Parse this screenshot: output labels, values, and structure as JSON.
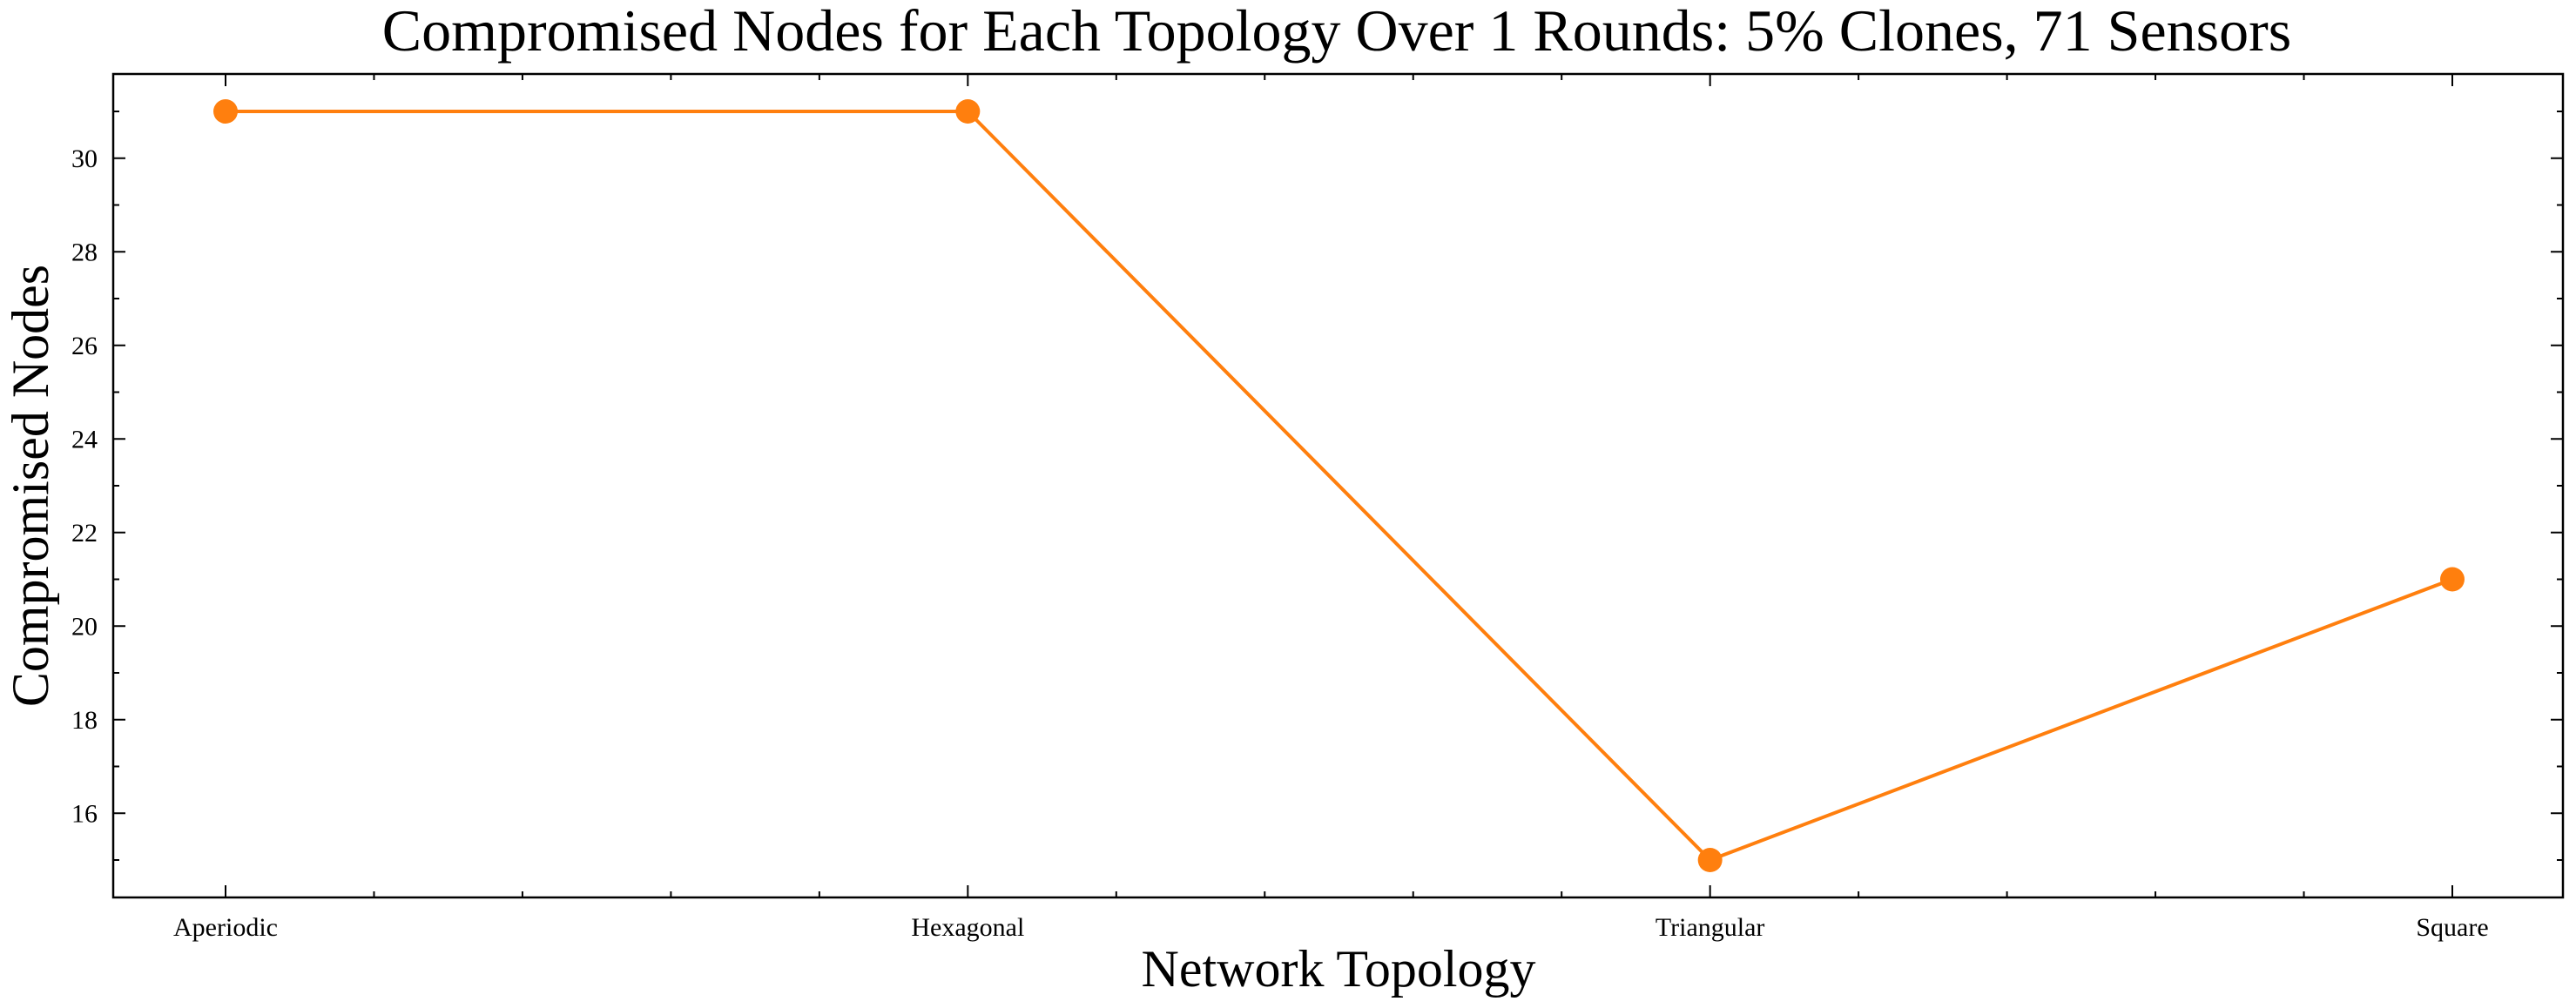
{
  "chart_data": {
    "type": "line",
    "title": "Compromised Nodes for Each Topology Over 1 Rounds: 5% Clones, 71 Sensors",
    "xlabel": "Network Topology",
    "ylabel": "Compromised Nodes",
    "categories": [
      "Aperiodic",
      "Hexagonal",
      "Triangular",
      "Square"
    ],
    "series": [
      {
        "color": "#ff7f0e",
        "values": [
          31,
          31,
          15,
          21
        ]
      }
    ],
    "ylim": [
      14.2,
      31.8
    ],
    "yticks": [
      16,
      18,
      20,
      22,
      24,
      26,
      28,
      30
    ],
    "ytick_labels": [
      "16",
      "18",
      "20",
      "22",
      "24",
      "26",
      "28",
      "30"
    ],
    "grid": false,
    "legend": "none"
  }
}
